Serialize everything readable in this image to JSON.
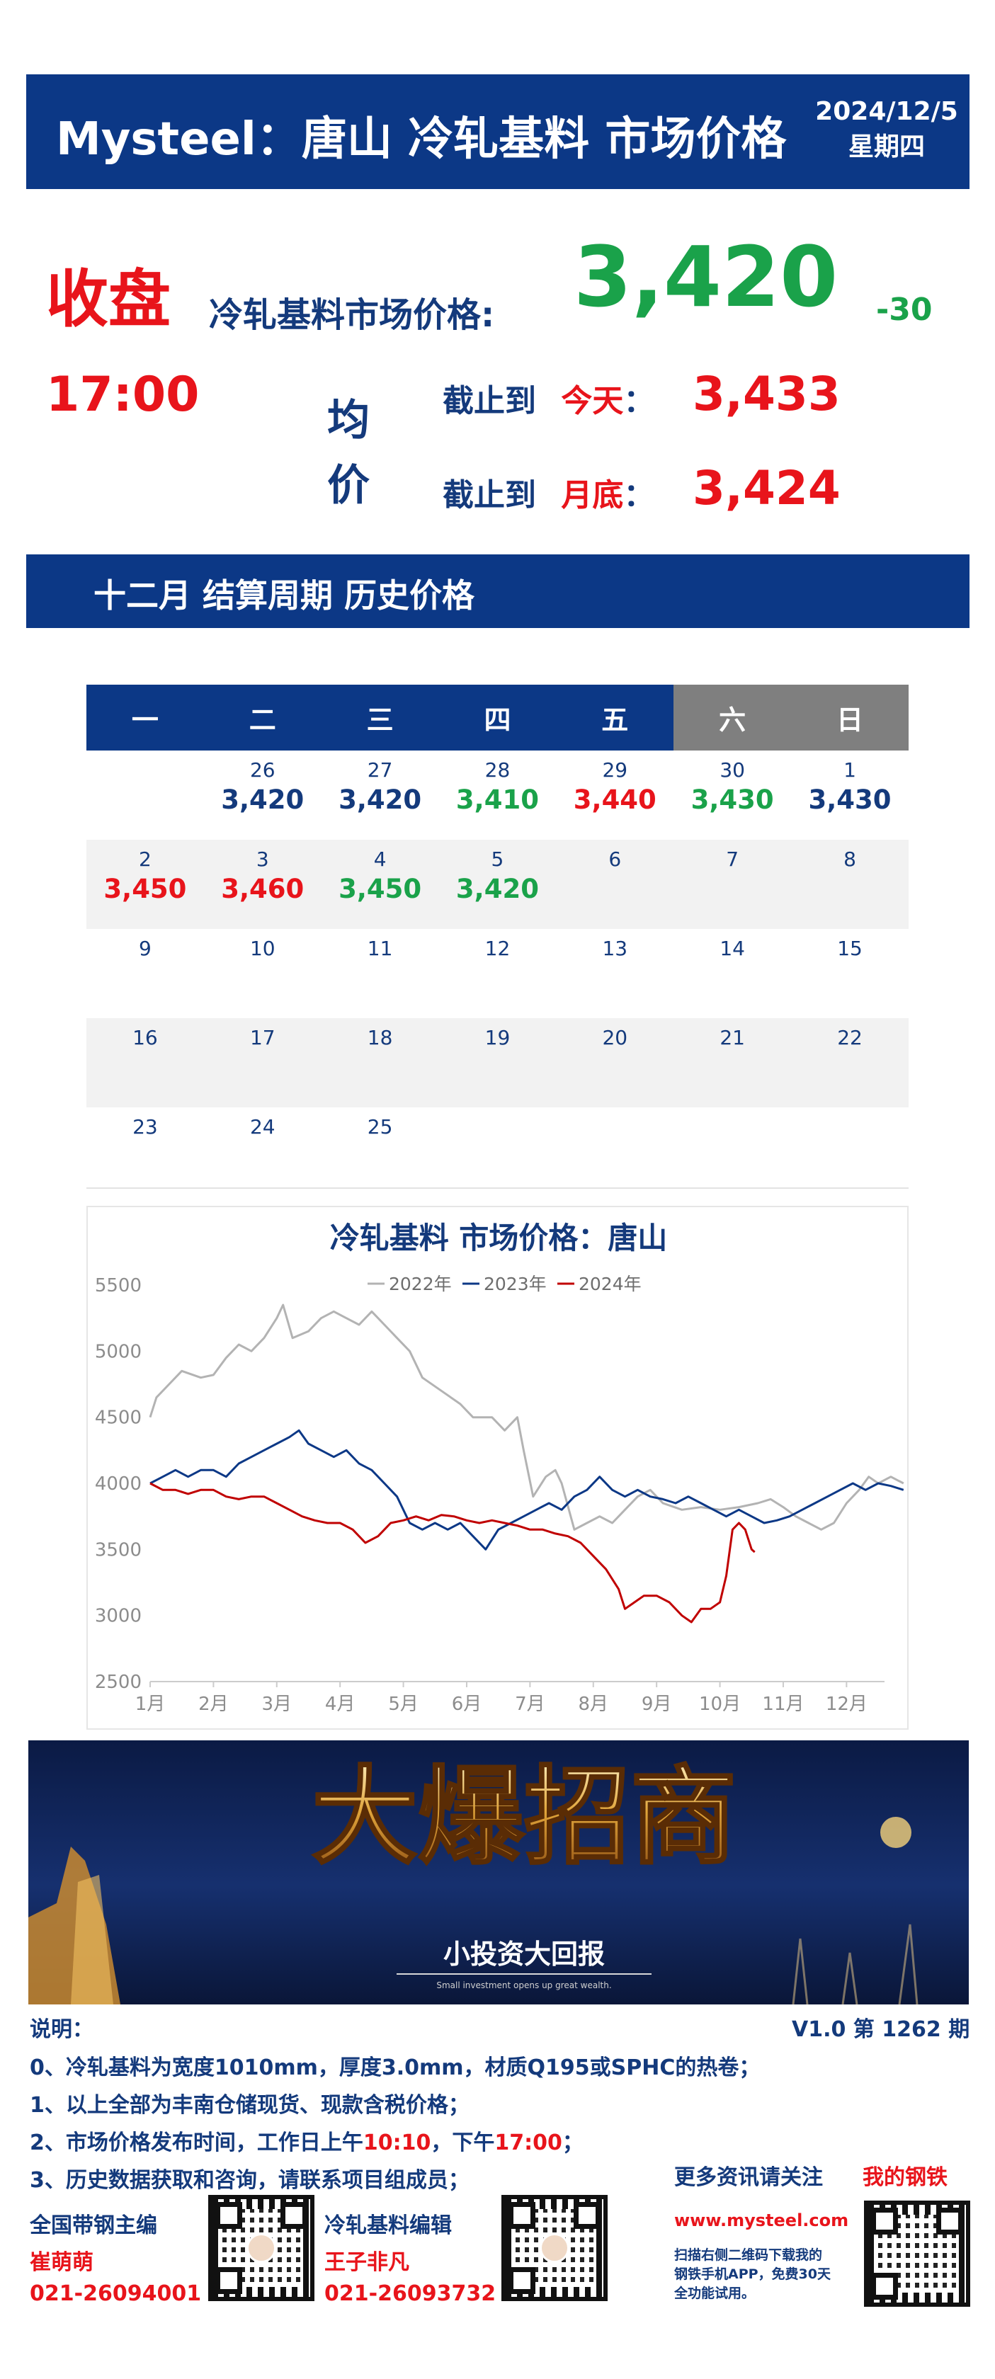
{
  "header": {
    "title": "Mysteel：唐山 冷轧基料 市场价格",
    "date": "2024/12/5",
    "weekday": "星期四"
  },
  "close": {
    "label": "收盘",
    "time": "17:00",
    "price_label": "冷轧基料市场价格:",
    "price": "3,420",
    "change": "-30"
  },
  "average": {
    "label_1": "均",
    "label_2": "价",
    "row1_prefix": "截止到",
    "row1_key": "今天",
    "row1_value": "3,433",
    "row2_prefix": "截止到",
    "row2_key": "月底",
    "row2_value": "3,424",
    "colon": "："
  },
  "section": {
    "title": "十二月 结算周期 历史价格"
  },
  "calendar": {
    "weekdays": [
      "一",
      "二",
      "三",
      "四",
      "五",
      "六",
      "日"
    ],
    "weeks": [
      [
        {
          "d": "",
          "p": "",
          "c": ""
        },
        {
          "d": "26",
          "p": "3,420",
          "c": "navy"
        },
        {
          "d": "27",
          "p": "3,420",
          "c": "navy"
        },
        {
          "d": "28",
          "p": "3,410",
          "c": "green"
        },
        {
          "d": "29",
          "p": "3,440",
          "c": "red"
        },
        {
          "d": "30",
          "p": "3,430",
          "c": "green"
        },
        {
          "d": "1",
          "p": "3,430",
          "c": "navy"
        }
      ],
      [
        {
          "d": "2",
          "p": "3,450",
          "c": "red"
        },
        {
          "d": "3",
          "p": "3,460",
          "c": "red"
        },
        {
          "d": "4",
          "p": "3,450",
          "c": "green"
        },
        {
          "d": "5",
          "p": "3,420",
          "c": "green"
        },
        {
          "d": "6",
          "p": "",
          "c": ""
        },
        {
          "d": "7",
          "p": "",
          "c": ""
        },
        {
          "d": "8",
          "p": "",
          "c": ""
        }
      ],
      [
        {
          "d": "9",
          "p": "",
          "c": ""
        },
        {
          "d": "10",
          "p": "",
          "c": ""
        },
        {
          "d": "11",
          "p": "",
          "c": ""
        },
        {
          "d": "12",
          "p": "",
          "c": ""
        },
        {
          "d": "13",
          "p": "",
          "c": ""
        },
        {
          "d": "14",
          "p": "",
          "c": ""
        },
        {
          "d": "15",
          "p": "",
          "c": ""
        }
      ],
      [
        {
          "d": "16",
          "p": "",
          "c": ""
        },
        {
          "d": "17",
          "p": "",
          "c": ""
        },
        {
          "d": "18",
          "p": "",
          "c": ""
        },
        {
          "d": "19",
          "p": "",
          "c": ""
        },
        {
          "d": "20",
          "p": "",
          "c": ""
        },
        {
          "d": "21",
          "p": "",
          "c": ""
        },
        {
          "d": "22",
          "p": "",
          "c": ""
        }
      ],
      [
        {
          "d": "23",
          "p": "",
          "c": ""
        },
        {
          "d": "24",
          "p": "",
          "c": ""
        },
        {
          "d": "25",
          "p": "",
          "c": ""
        },
        {
          "d": "",
          "p": "",
          "c": ""
        },
        {
          "d": "",
          "p": "",
          "c": ""
        },
        {
          "d": "",
          "p": "",
          "c": ""
        },
        {
          "d": "",
          "p": "",
          "c": ""
        }
      ]
    ]
  },
  "chart_data": {
    "type": "line",
    "title": "冷轧基料 市场价格：唐山",
    "xlabel": "",
    "ylabel": "",
    "categories": [
      "1月",
      "2月",
      "3月",
      "4月",
      "5月",
      "6月",
      "7月",
      "8月",
      "9月",
      "10月",
      "11月",
      "12月"
    ],
    "ylim": [
      2500,
      5500
    ],
    "yticks": [
      2500,
      3000,
      3500,
      4000,
      4500,
      5000,
      5500
    ],
    "legend_position": "top",
    "grid": false,
    "series": [
      {
        "name": "2022年",
        "color": "#b3b3b3",
        "points": [
          [
            0,
            4500
          ],
          [
            0.1,
            4650
          ],
          [
            0.3,
            4750
          ],
          [
            0.5,
            4850
          ],
          [
            0.8,
            4800
          ],
          [
            1.0,
            4820
          ],
          [
            1.2,
            4950
          ],
          [
            1.4,
            5050
          ],
          [
            1.6,
            5000
          ],
          [
            1.8,
            5100
          ],
          [
            2.0,
            5250
          ],
          [
            2.1,
            5350
          ],
          [
            2.25,
            5100
          ],
          [
            2.5,
            5150
          ],
          [
            2.7,
            5250
          ],
          [
            2.9,
            5300
          ],
          [
            3.1,
            5250
          ],
          [
            3.3,
            5200
          ],
          [
            3.5,
            5300
          ],
          [
            3.7,
            5200
          ],
          [
            3.9,
            5100
          ],
          [
            4.1,
            5000
          ],
          [
            4.3,
            4800
          ],
          [
            4.6,
            4700
          ],
          [
            4.9,
            4600
          ],
          [
            5.1,
            4500
          ],
          [
            5.4,
            4500
          ],
          [
            5.6,
            4400
          ],
          [
            5.8,
            4500
          ],
          [
            5.9,
            4250
          ],
          [
            6.05,
            3900
          ],
          [
            6.25,
            4050
          ],
          [
            6.4,
            4100
          ],
          [
            6.5,
            4000
          ],
          [
            6.7,
            3650
          ],
          [
            6.9,
            3700
          ],
          [
            7.1,
            3750
          ],
          [
            7.3,
            3700
          ],
          [
            7.5,
            3800
          ],
          [
            7.7,
            3900
          ],
          [
            7.9,
            3950
          ],
          [
            8.1,
            3850
          ],
          [
            8.4,
            3800
          ],
          [
            8.7,
            3820
          ],
          [
            9.0,
            3800
          ],
          [
            9.3,
            3820
          ],
          [
            9.6,
            3850
          ],
          [
            9.8,
            3880
          ],
          [
            10.0,
            3820
          ],
          [
            10.2,
            3750
          ],
          [
            10.4,
            3700
          ],
          [
            10.6,
            3650
          ],
          [
            10.8,
            3700
          ],
          [
            11.0,
            3850
          ],
          [
            11.2,
            3950
          ],
          [
            11.35,
            4050
          ],
          [
            11.5,
            4000
          ],
          [
            11.7,
            4050
          ],
          [
            11.9,
            4000
          ]
        ]
      },
      {
        "name": "2023年",
        "color": "#0c3886",
        "points": [
          [
            0,
            4000
          ],
          [
            0.2,
            4050
          ],
          [
            0.4,
            4100
          ],
          [
            0.6,
            4050
          ],
          [
            0.8,
            4100
          ],
          [
            1.0,
            4100
          ],
          [
            1.2,
            4050
          ],
          [
            1.4,
            4150
          ],
          [
            1.6,
            4200
          ],
          [
            1.8,
            4250
          ],
          [
            2.0,
            4300
          ],
          [
            2.2,
            4350
          ],
          [
            2.35,
            4400
          ],
          [
            2.5,
            4300
          ],
          [
            2.7,
            4250
          ],
          [
            2.9,
            4200
          ],
          [
            3.1,
            4250
          ],
          [
            3.3,
            4150
          ],
          [
            3.5,
            4100
          ],
          [
            3.7,
            4000
          ],
          [
            3.9,
            3900
          ],
          [
            4.1,
            3700
          ],
          [
            4.3,
            3650
          ],
          [
            4.5,
            3700
          ],
          [
            4.7,
            3650
          ],
          [
            4.9,
            3700
          ],
          [
            5.1,
            3600
          ],
          [
            5.3,
            3500
          ],
          [
            5.5,
            3650
          ],
          [
            5.7,
            3700
          ],
          [
            5.9,
            3750
          ],
          [
            6.1,
            3800
          ],
          [
            6.3,
            3850
          ],
          [
            6.5,
            3800
          ],
          [
            6.7,
            3900
          ],
          [
            6.9,
            3950
          ],
          [
            7.1,
            4050
          ],
          [
            7.3,
            3950
          ],
          [
            7.5,
            3900
          ],
          [
            7.7,
            3950
          ],
          [
            7.9,
            3900
          ],
          [
            8.1,
            3880
          ],
          [
            8.3,
            3850
          ],
          [
            8.5,
            3900
          ],
          [
            8.7,
            3850
          ],
          [
            8.9,
            3800
          ],
          [
            9.1,
            3750
          ],
          [
            9.3,
            3800
          ],
          [
            9.5,
            3750
          ],
          [
            9.7,
            3700
          ],
          [
            9.9,
            3720
          ],
          [
            10.1,
            3750
          ],
          [
            10.3,
            3800
          ],
          [
            10.5,
            3850
          ],
          [
            10.7,
            3900
          ],
          [
            10.9,
            3950
          ],
          [
            11.1,
            4000
          ],
          [
            11.3,
            3950
          ],
          [
            11.5,
            4000
          ],
          [
            11.7,
            3980
          ],
          [
            11.9,
            3950
          ]
        ]
      },
      {
        "name": "2024年",
        "color": "#c00000",
        "points": [
          [
            0,
            4000
          ],
          [
            0.2,
            3950
          ],
          [
            0.4,
            3950
          ],
          [
            0.6,
            3920
          ],
          [
            0.8,
            3950
          ],
          [
            1.0,
            3950
          ],
          [
            1.2,
            3900
          ],
          [
            1.4,
            3880
          ],
          [
            1.6,
            3900
          ],
          [
            1.8,
            3900
          ],
          [
            2.0,
            3850
          ],
          [
            2.2,
            3800
          ],
          [
            2.4,
            3750
          ],
          [
            2.6,
            3720
          ],
          [
            2.8,
            3700
          ],
          [
            3.0,
            3700
          ],
          [
            3.2,
            3650
          ],
          [
            3.4,
            3550
          ],
          [
            3.6,
            3600
          ],
          [
            3.8,
            3700
          ],
          [
            4.0,
            3720
          ],
          [
            4.2,
            3750
          ],
          [
            4.4,
            3720
          ],
          [
            4.6,
            3760
          ],
          [
            4.8,
            3750
          ],
          [
            5.0,
            3720
          ],
          [
            5.2,
            3700
          ],
          [
            5.4,
            3720
          ],
          [
            5.6,
            3700
          ],
          [
            5.8,
            3680
          ],
          [
            6.0,
            3650
          ],
          [
            6.2,
            3650
          ],
          [
            6.4,
            3620
          ],
          [
            6.6,
            3600
          ],
          [
            6.8,
            3550
          ],
          [
            7.0,
            3450
          ],
          [
            7.2,
            3350
          ],
          [
            7.4,
            3200
          ],
          [
            7.5,
            3050
          ],
          [
            7.65,
            3100
          ],
          [
            7.8,
            3150
          ],
          [
            8.0,
            3150
          ],
          [
            8.2,
            3100
          ],
          [
            8.4,
            3000
          ],
          [
            8.55,
            2950
          ],
          [
            8.7,
            3050
          ],
          [
            8.85,
            3050
          ],
          [
            9.0,
            3100
          ],
          [
            9.1,
            3300
          ],
          [
            9.2,
            3650
          ],
          [
            9.3,
            3700
          ],
          [
            9.4,
            3650
          ],
          [
            9.5,
            3500
          ],
          [
            9.55,
            3480
          ]
        ]
      }
    ]
  },
  "notes": {
    "label": "说明：",
    "version": "V1.0 第 1262 期",
    "items": [
      "0、冷轧基料为宽度1010mm，厚度3.0mm，材质Q195或SPHC的热卷；",
      "1、以上全部为丰南仓储现货、现款含税价格；",
      "3、历史数据获取和咨询，请联系项目组成员；"
    ],
    "item2_a": "2、市场价格发布时间，工作日上午",
    "item2_t1": "10:10",
    "item2_b": "，下午",
    "item2_t2": "17:00",
    "item2_c": "；"
  },
  "contacts": {
    "editor1_title": "全国带钢主编",
    "editor1_name": "崔萌萌",
    "editor1_phone": "021-26094001",
    "editor2_title": "冷轧基料编辑",
    "editor2_name": "王子非凡",
    "editor2_phone": "021-26093732",
    "follow_label": "更多资讯请关注",
    "app_name": "我的钢铁",
    "site": "www.mysteel.com",
    "app_note_1": "扫描右侧二维码下载我的",
    "app_note_2": "钢铁手机APP，免费30天",
    "app_note_3": "全功能试用。"
  },
  "banner": {
    "headline": "大爆招商",
    "sub": "小投资大回报",
    "tiny": "Small investment opens up great wealth."
  }
}
